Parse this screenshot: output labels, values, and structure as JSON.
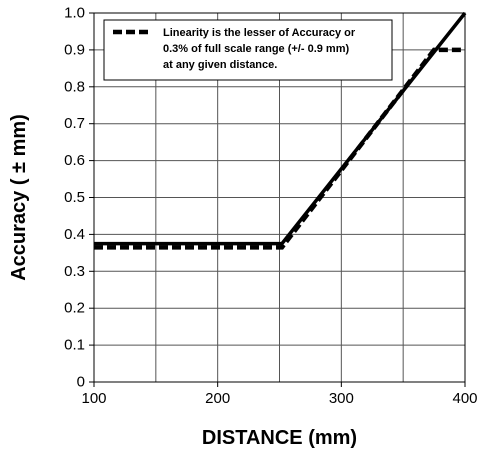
{
  "chart_data": {
    "type": "line",
    "title": "",
    "xlabel": "DISTANCE (mm)",
    "ylabel": "Accuracy ( ± mm)",
    "xlim": [
      100,
      400
    ],
    "ylim": [
      0,
      1.0
    ],
    "x_ticks": [
      100,
      200,
      300,
      400
    ],
    "x_tick_labels": [
      "100",
      "200",
      "300",
      "400"
    ],
    "y_ticks": [
      0,
      0.1,
      0.2,
      0.3,
      0.4,
      0.5,
      0.6,
      0.7,
      0.8,
      0.9,
      1.0
    ],
    "y_tick_labels": [
      "0",
      "0.1",
      "0.2",
      "0.3",
      "0.4",
      "0.5",
      "0.6",
      "0.7",
      "0.8",
      "0.9",
      "1.0"
    ],
    "x_gridlines": [
      150,
      200,
      250,
      300,
      350
    ],
    "y_gridlines": [
      0.1,
      0.2,
      0.3,
      0.4,
      0.5,
      0.6,
      0.7,
      0.8,
      0.9
    ],
    "grid": true,
    "legend_position": "top-left",
    "legend_lines": [
      "Linearity is the lesser of Accuracy or",
      "0.3% of full scale range (+/- 0.9 mm)",
      "at any given distance."
    ],
    "series": [
      {
        "style": "solid",
        "color": "#000000",
        "x": [
          100,
          252,
          400
        ],
        "y": [
          0.375,
          0.375,
          1.0
        ]
      },
      {
        "name": "Linearity is the lesser of Accuracy or 0.3% of full scale range (+/- 0.9 mm) at any given distance.",
        "style": "dashed",
        "color": "#000000",
        "x": [
          100,
          252,
          375,
          400
        ],
        "y": [
          0.365,
          0.365,
          0.9,
          0.9
        ]
      }
    ]
  }
}
